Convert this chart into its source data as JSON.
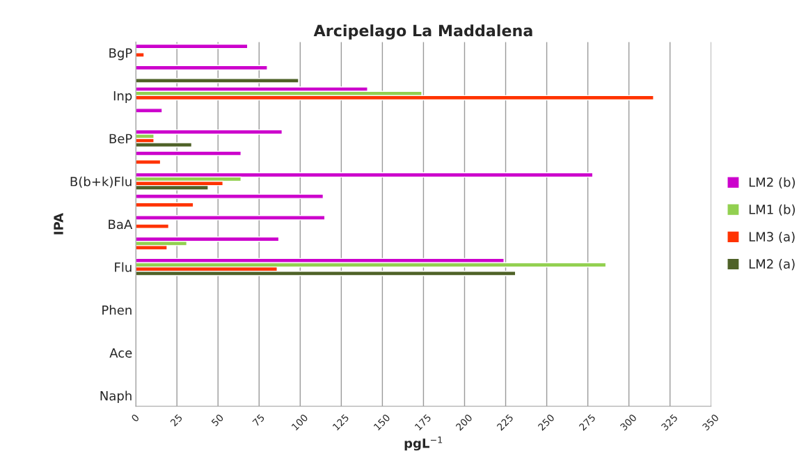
{
  "chart_data": {
    "type": "bar",
    "orientation": "horizontal",
    "title": "Arcipelago La Maddalena",
    "xlabel": "pgL$^{−1}$",
    "ylabel": "IPA",
    "categories": [
      "BgP",
      null,
      "Inp",
      null,
      "BeP",
      null,
      "B(b+k)Flu",
      null,
      "BaA",
      null,
      "Flu",
      null,
      "Phen",
      null,
      "Ace",
      null,
      "Naph"
    ],
    "series": [
      {
        "name": "LM2 (b)",
        "color": "#cc00cc",
        "values": [
          68,
          80,
          141,
          16,
          89,
          64,
          278,
          114,
          115,
          87,
          224,
          null,
          null,
          null,
          null,
          null,
          null
        ]
      },
      {
        "name": "LM1 (b)",
        "color": "#92d050",
        "values": [
          null,
          null,
          174,
          null,
          11,
          null,
          64,
          null,
          null,
          31,
          286,
          null,
          null,
          null,
          null,
          null,
          null
        ]
      },
      {
        "name": "LM3 (a)",
        "color": "#ff3300",
        "values": [
          5,
          null,
          315,
          null,
          11,
          15,
          53,
          35,
          20,
          19,
          86,
          null,
          null,
          null,
          null,
          null,
          null
        ]
      },
      {
        "name": "LM2 (a)",
        "color": "#4f6228",
        "values": [
          null,
          99,
          null,
          null,
          34,
          null,
          44,
          null,
          null,
          null,
          231,
          null,
          null,
          null,
          null,
          null,
          null
        ]
      }
    ],
    "xlim": [
      0,
      350
    ],
    "xticks": [
      0,
      25,
      50,
      75,
      100,
      125,
      150,
      175,
      200,
      225,
      250,
      275,
      300,
      325,
      350
    ],
    "grid": "x",
    "legend": "right"
  }
}
